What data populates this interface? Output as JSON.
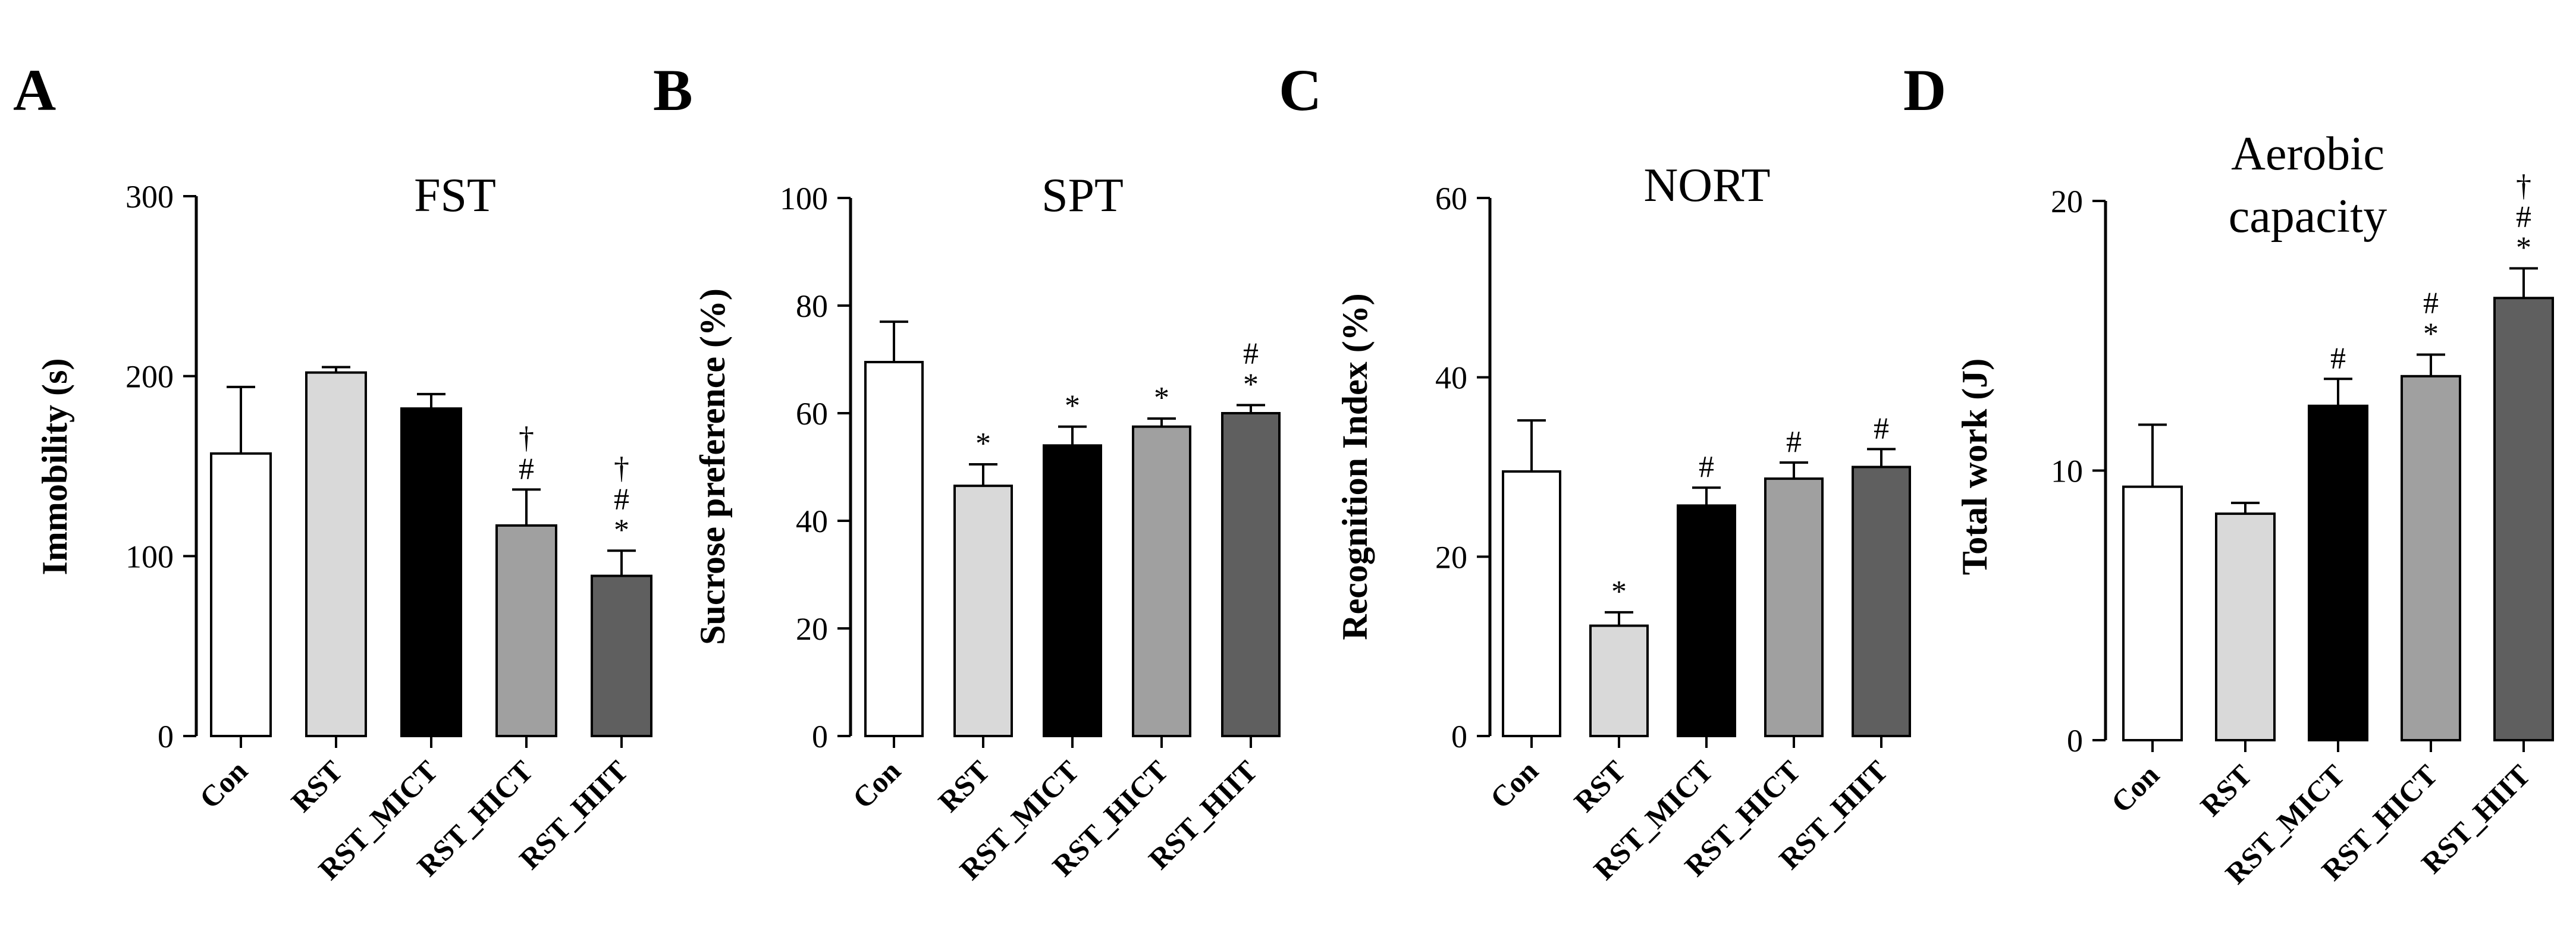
{
  "figure": {
    "panels": [
      "A",
      "B",
      "C",
      "D"
    ]
  },
  "colors": {
    "Con": "#ffffff",
    "RST": "#d9d9d9",
    "RST_MICT": "#000000",
    "RST_HICT": "#a0a0a0",
    "RST_HIIT": "#5f5f5f",
    "stroke": "#000000"
  },
  "chart_data": [
    {
      "panel": "A",
      "type": "bar",
      "title": "FST",
      "ylabel": "Immobility (s)",
      "xlabel": "",
      "categories": [
        "Con",
        "RST",
        "RST_MICT",
        "RST_HICT",
        "RST_HIIT"
      ],
      "values": [
        157,
        202,
        182,
        117,
        89
      ],
      "errors": [
        37,
        3,
        8,
        20,
        14
      ],
      "annotations": [
        [],
        [],
        [],
        [
          "†",
          "#"
        ],
        [
          "†",
          "#",
          "*"
        ]
      ],
      "ylim": [
        0,
        300
      ],
      "yticks": [
        0,
        100,
        200,
        300
      ]
    },
    {
      "panel": "B",
      "type": "bar",
      "title": "SPT",
      "ylabel": "Sucrose preference (%)",
      "xlabel": "",
      "categories": [
        "Con",
        "RST",
        "RST_MICT",
        "RST_HICT",
        "RST_HIIT"
      ],
      "values": [
        69.5,
        46.5,
        54.0,
        57.5,
        60.0
      ],
      "errors": [
        7.5,
        4.0,
        3.5,
        1.5,
        1.5
      ],
      "annotations": [
        [],
        [
          "*"
        ],
        [
          "*"
        ],
        [
          "*"
        ],
        [
          "#",
          "*"
        ]
      ],
      "ylim": [
        0,
        100
      ],
      "yticks": [
        0,
        20,
        40,
        60,
        80,
        100
      ]
    },
    {
      "panel": "C",
      "type": "bar",
      "title": "NORT",
      "ylabel": "Recognition Index (%)",
      "xlabel": "",
      "categories": [
        "Con",
        "RST",
        "RST_MICT",
        "RST_HICT",
        "RST_HIIT"
      ],
      "values": [
        29.5,
        12.3,
        25.7,
        28.7,
        30.0
      ],
      "errors": [
        5.7,
        1.5,
        2.0,
        1.8,
        2.0
      ],
      "annotations": [
        [],
        [
          "*"
        ],
        [
          "#"
        ],
        [
          "#"
        ],
        [
          "#"
        ]
      ],
      "ylim": [
        0,
        60
      ],
      "yticks": [
        0,
        20,
        40,
        60
      ]
    },
    {
      "panel": "D",
      "type": "bar",
      "title": "Aerobic capacity",
      "title_lines": [
        "Aerobic",
        "capacity"
      ],
      "ylabel": "Total work (J)",
      "xlabel": "",
      "categories": [
        "Con",
        "RST",
        "RST_MICT",
        "RST_HICT",
        "RST_HIIT"
      ],
      "values": [
        9.4,
        8.4,
        12.4,
        13.5,
        16.4
      ],
      "errors": [
        2.3,
        0.4,
        1.0,
        0.8,
        1.1
      ],
      "annotations": [
        [],
        [],
        [
          "#"
        ],
        [
          "#",
          "*"
        ],
        [
          "†",
          "#",
          "*"
        ]
      ],
      "ylim": [
        0,
        20
      ],
      "yticks": [
        0,
        10,
        20
      ]
    }
  ]
}
